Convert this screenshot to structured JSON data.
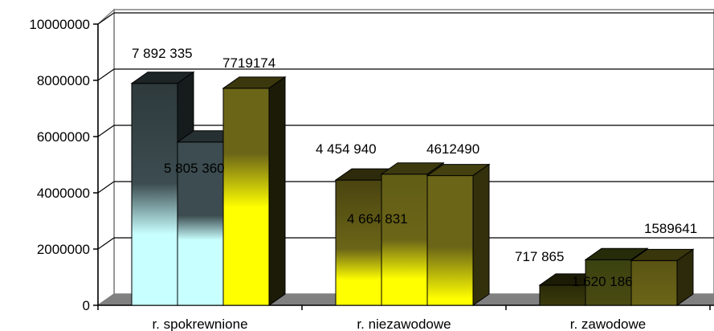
{
  "chart_data": {
    "type": "bar",
    "three_d": true,
    "categories": [
      "r. spokrewnione",
      "r. niezawodowe",
      "r. zawodowe"
    ],
    "series": [
      {
        "values": [
          7892335,
          4454940,
          717865
        ]
      },
      {
        "values": [
          5805360,
          4664831,
          1620186
        ]
      },
      {
        "values": [
          7719174,
          4612490,
          1589641
        ]
      }
    ],
    "data_labels": [
      [
        "7 892 335",
        "5 805 360",
        "7719174"
      ],
      [
        "4 454 940",
        "4 664 831",
        "4612490"
      ],
      [
        "717 865",
        "1 620 186",
        "1589641"
      ]
    ],
    "ylim": [
      0,
      10000000
    ],
    "yticks": [
      0,
      2000000,
      4000000,
      6000000,
      8000000,
      10000000
    ],
    "ytick_labels": [
      "0",
      "2000000",
      "4000000",
      "6000000",
      "8000000",
      "10000000"
    ],
    "grid": true,
    "legend": "none",
    "floor_color": "#808080",
    "colors": {
      "spokrewnione": [
        "#2e3a3c",
        "#3c4c50",
        "#ffff00"
      ],
      "niezawodowe": [
        "#4a4410",
        "#615d15",
        "#6b6518"
      ],
      "zawodowe": [
        "#2a2a08",
        "#3a4210",
        "#5a5414"
      ]
    }
  }
}
